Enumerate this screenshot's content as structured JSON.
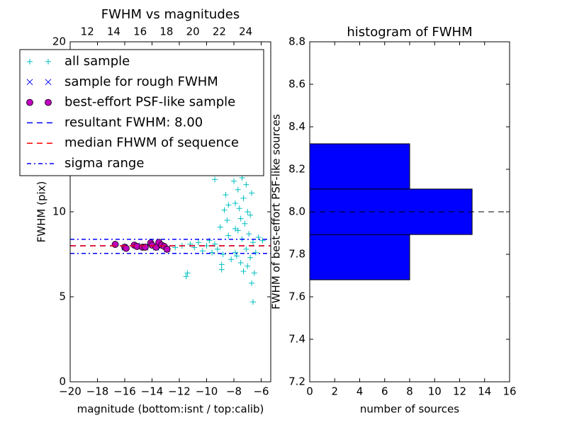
{
  "chart_data": [
    {
      "type": "scatter",
      "title": "FWHM vs magnitudes",
      "xlabel": "magnitude (bottom:isnt / top:calib)",
      "ylabel": "FWHM (pix)",
      "xlim": [
        -20,
        -5.3
      ],
      "xticks": [
        {
          "value": -20,
          "label": "−20"
        },
        {
          "value": -18,
          "label": "−18"
        },
        {
          "value": -16,
          "label": "−16"
        },
        {
          "value": -14,
          "label": "−14"
        },
        {
          "value": -12,
          "label": "−12"
        },
        {
          "value": -10,
          "label": "−10"
        },
        {
          "value": -8,
          "label": "−8"
        },
        {
          "value": -6,
          "label": "−6"
        }
      ],
      "x2lim": [
        10.7,
        25.9
      ],
      "x2ticks": [
        12,
        14,
        16,
        18,
        20,
        22,
        24
      ],
      "ylim": [
        0,
        20
      ],
      "yticks": [
        0,
        5,
        10,
        20
      ],
      "legend": "upper left",
      "series": [
        {
          "name": "all sample",
          "marker": "+",
          "color": "#00bfbf",
          "x": [
            -16.6,
            -16.0,
            -15.3,
            -14.7,
            -14.1,
            -13.5,
            -13.1,
            -12.9,
            -12.3,
            -11.8,
            -11.5,
            -11.4,
            -11.2,
            -10.9,
            -10.6,
            -10.3,
            -10.0,
            -9.8,
            -9.6,
            -9.4,
            -9.2,
            -9.0,
            -8.9,
            -8.8,
            -8.7,
            -8.6,
            -8.5,
            -8.4,
            -8.3,
            -8.2,
            -8.1,
            -8.0,
            -7.9,
            -7.9,
            -7.8,
            -7.8,
            -7.7,
            -7.7,
            -7.6,
            -7.6,
            -7.5,
            -7.5,
            -7.4,
            -7.4,
            -7.3,
            -7.3,
            -7.2,
            -7.2,
            -7.1,
            -7.1,
            -7.0,
            -7.0,
            -6.9,
            -6.9,
            -6.8,
            -6.8,
            -6.7,
            -6.7,
            -6.6,
            -6.6,
            -6.5,
            -6.4,
            -6.2,
            -5.9,
            -8.8,
            -9.4,
            -8.4,
            -7.9,
            -8.9,
            -7.0
          ],
          "y": [
            8.1,
            7.9,
            8.0,
            7.9,
            8.2,
            8.2,
            8.0,
            7.8,
            7.9,
            8.0,
            6.2,
            6.4,
            8.1,
            7.9,
            8.2,
            7.7,
            8.0,
            8.3,
            7.6,
            8.1,
            7.8,
            9.1,
            6.9,
            7.5,
            10.1,
            11.0,
            9.5,
            8.6,
            12.3,
            7.2,
            13.5,
            11.8,
            10.5,
            9.0,
            12.8,
            7.4,
            11.3,
            8.9,
            13.9,
            10.2,
            9.6,
            7.0,
            12.0,
            8.4,
            10.8,
            6.5,
            13.0,
            9.3,
            11.6,
            7.8,
            10.0,
            6.8,
            12.5,
            8.7,
            9.8,
            7.3,
            11.1,
            5.8,
            4.7,
            8.2,
            6.4,
            7.6,
            8.5,
            8.3,
            13.2,
            11.9,
            10.4,
            7.6,
            6.6,
            14.2
          ]
        },
        {
          "name": "sample for rough FWHM",
          "marker": "x",
          "color": "#0000ff",
          "x": [
            -16.0,
            -15.1,
            -14.5,
            -13.7,
            -13.3,
            -12.9
          ],
          "y": [
            7.9,
            8.0,
            7.9,
            7.9,
            8.0,
            7.8
          ]
        },
        {
          "name": "best-effort PSF-like sample",
          "marker": "o",
          "color": "#bf00bf",
          "x": [
            -16.7,
            -16.0,
            -15.9,
            -15.3,
            -15.1,
            -14.7,
            -14.5,
            -14.1,
            -14.0,
            -13.7,
            -13.5,
            -13.3,
            -13.1,
            -12.9
          ],
          "y": [
            8.08,
            7.92,
            7.85,
            8.04,
            7.96,
            7.92,
            7.92,
            8.17,
            8.04,
            7.92,
            8.2,
            8.04,
            7.96,
            7.8
          ]
        },
        {
          "name": "resultant FWHM: 8.00",
          "marker": "--",
          "color": "#0000ff",
          "values": [
            8.0
          ]
        },
        {
          "name": "median FHWM of sequence",
          "marker": "--",
          "color": "#ff0000",
          "values": [
            8.0
          ]
        },
        {
          "name": "sigma range",
          "marker": "-.",
          "color": "#0000ff",
          "values": [
            7.55,
            8.38
          ]
        }
      ]
    },
    {
      "type": "histogram",
      "orientation": "horizontal",
      "title": "histogram of FWHM",
      "xlabel": "number of sources",
      "ylabel": "FWHM of best-effort PSF-like sources",
      "xlim": [
        0,
        16
      ],
      "xticks": [
        0,
        2,
        4,
        6,
        8,
        10,
        12,
        14,
        16
      ],
      "ylim": [
        7.2,
        8.8
      ],
      "yticks": [
        7.2,
        7.4,
        7.6,
        7.8,
        {
          "value": 8,
          "label": "8.0"
        },
        8.2,
        8.4,
        8.6,
        8.8
      ],
      "bins": [
        7.68,
        7.893,
        8.107,
        8.32
      ],
      "values": [
        8,
        13,
        8
      ],
      "color": "#0000ff",
      "hline": 8.0
    }
  ]
}
